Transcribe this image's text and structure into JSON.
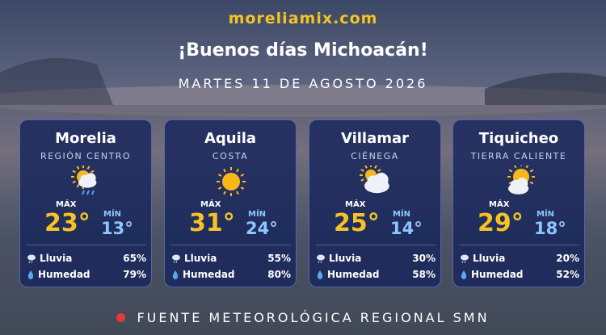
{
  "header": {
    "site": "moreliamix.com",
    "greeting": "¡Buenos días Michoacán!",
    "date": "MARTES 11 DE AGOSTO 2026"
  },
  "labels": {
    "max": "MÁX",
    "min": "MÍN",
    "rain": "Lluvia",
    "humidity": "Humedad"
  },
  "cards": [
    {
      "city": "Morelia",
      "region": "REGIÓN CENTRO",
      "max": "23°",
      "min": "13°",
      "rain": "65%",
      "humidity": "79%"
    },
    {
      "city": "Aquila",
      "region": "COSTA",
      "max": "31°",
      "min": "24°",
      "rain": "55%",
      "humidity": "80%"
    },
    {
      "city": "Villamar",
      "region": "CIÉNEGA",
      "max": "25°",
      "min": "14°",
      "rain": "30%",
      "humidity": "58%"
    },
    {
      "city": "Tiquicheo",
      "region": "TIERRA CALIENTE",
      "max": "29°",
      "min": "18°",
      "rain": "20%",
      "humidity": "52%"
    }
  ],
  "footer": "FUENTE METEOROLÓGICA REGIONAL SMN"
}
